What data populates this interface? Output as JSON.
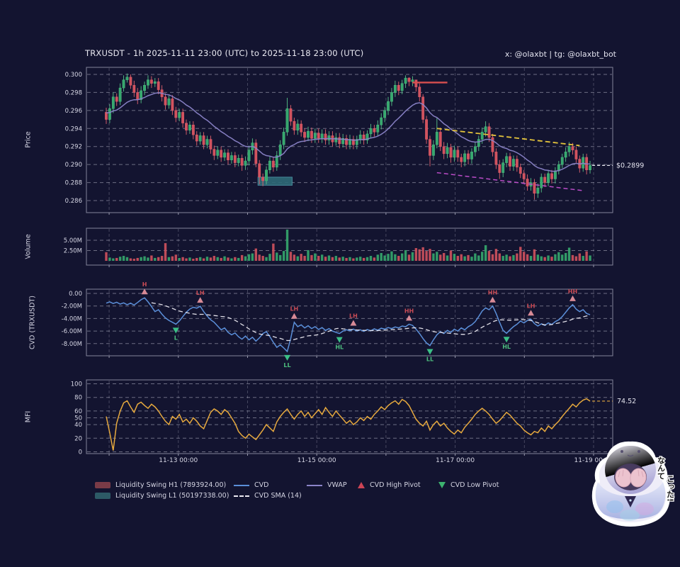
{
  "meta": {
    "title": "TRXUSDT - 1h 2025-11-11 23:00 (UTC) to 2025-11-18 23:00 (UTC)",
    "credit": "x: @olaxbt | tg: @olaxbt_bot"
  },
  "colors": {
    "bg": "#131430",
    "panel_border": "#a9a9bd",
    "grid": "#d9d9e8",
    "text": "#d6d6e4",
    "up": "#36a86e",
    "up_edge": "#55c287",
    "down": "#d2525e",
    "down_edge": "#e2626e",
    "vwap": "#8b84c9",
    "cvd": "#5b8fd9",
    "cvd_sma": "#eceaf2",
    "mfi": "#e6a93e",
    "h1_line": "#d94f4f",
    "l1_fill": "#2e6a78",
    "l1_edge": "#4a95a6",
    "upper_trend": "#e4c43c",
    "lower_trend": "#c44fd0",
    "last_price": "#e8e8f0",
    "pivot_high": "#d88a96",
    "pivot_high_text": "#c84b55",
    "pivot_low": "#3bbf86",
    "pivot_low_text": "#4cbd7e",
    "legend_h1_patch": "#7a3b47",
    "legend_l1_patch": "#2d5a66"
  },
  "panels": {
    "price": {
      "label": "Price"
    },
    "volume": {
      "label": "Volume"
    },
    "cvd": {
      "label": "CVD (TRXUSDT)"
    },
    "mfi": {
      "label": "MFI"
    }
  },
  "legend": {
    "rows": [
      {
        "items": [
          {
            "swatch": "patch",
            "color": "#7a3b47",
            "label": "Liquidity Swing H1 (7893924.00)"
          },
          {
            "swatch": "line",
            "color": "#5b8fd9",
            "label": "CVD"
          },
          {
            "swatch": "line",
            "color": "#8b84c9",
            "label": "VWAP"
          },
          {
            "swatch": "triangle-up",
            "color": "#cc4455",
            "label": "CVD High Pivot"
          },
          {
            "swatch": "triangle-down",
            "color": "#3db36f",
            "label": "CVD Low Pivot"
          }
        ]
      },
      {
        "items": [
          {
            "swatch": "patch",
            "color": "#2d5a66",
            "label": "Liquidity Swing L1 (50197338.00)"
          },
          {
            "swatch": "dashed",
            "color": "#eceaf2",
            "label": "CVD SMA (14)"
          }
        ]
      }
    ]
  },
  "mascot": {
    "line1": "なんて",
    "line2": "こった!"
  },
  "chart_data": {
    "type": "candlestick-multipanel",
    "symbol": "TRXUSDT",
    "interval": "1h",
    "range": "2025-11-11 23:00 (UTC) to 2025-11-18 23:00 (UTC)",
    "bars": 140,
    "axes": {
      "price_ticks": {
        "labels": [
          "0.300",
          "0.298",
          "0.296",
          "0.294",
          "0.292",
          "0.290",
          "0.288",
          "0.286"
        ],
        "values": [
          0.3,
          0.298,
          0.296,
          0.294,
          0.292,
          0.29,
          0.288,
          0.286
        ]
      },
      "volume_ticks": {
        "labels": [
          "5.00M",
          "2.50M"
        ],
        "values": [
          5.0,
          2.5
        ]
      },
      "cvd_ticks": {
        "labels": [
          "0.00",
          "-2.00M",
          "-4.00M",
          "-6.00M",
          "-8.00M"
        ],
        "values": [
          0,
          -2,
          -4,
          -6,
          -8
        ]
      },
      "mfi_ticks": {
        "labels": [
          "100",
          "80",
          "60",
          "50",
          "40",
          "20",
          "0"
        ],
        "values": [
          100,
          80,
          60,
          50,
          40,
          20,
          0
        ]
      },
      "x_ticks": {
        "labels": [
          "11-13 00:00",
          "11-15 00:00",
          "11-17 00:00",
          "11-19 00:00"
        ],
        "hours": [
          25,
          73,
          121,
          169
        ]
      },
      "day_hours": [
        1,
        25,
        49,
        73,
        97,
        121,
        145,
        169
      ]
    },
    "candles": {
      "first_open": 0.2958,
      "close": [
        0.295,
        0.2962,
        0.2975,
        0.297,
        0.2985,
        0.2994,
        0.2997,
        0.2988,
        0.298,
        0.2972,
        0.2982,
        0.2988,
        0.2994,
        0.299,
        0.2992,
        0.2983,
        0.2975,
        0.2966,
        0.2973,
        0.296,
        0.2952,
        0.2958,
        0.2946,
        0.2938,
        0.2944,
        0.2933,
        0.2926,
        0.2932,
        0.2922,
        0.2928,
        0.2917,
        0.291,
        0.2916,
        0.2908,
        0.2913,
        0.2905,
        0.291,
        0.2902,
        0.2907,
        0.2899,
        0.2904,
        0.2916,
        0.2924,
        0.2901,
        0.2886,
        0.2882,
        0.2894,
        0.2904,
        0.2897,
        0.291,
        0.2922,
        0.2936,
        0.2962,
        0.2948,
        0.2938,
        0.2945,
        0.2936,
        0.293,
        0.2937,
        0.2929,
        0.2935,
        0.2929,
        0.2934,
        0.2927,
        0.2932,
        0.2925,
        0.293,
        0.2923,
        0.2929,
        0.2922,
        0.2928,
        0.2922,
        0.2928,
        0.2933,
        0.2927,
        0.2934,
        0.294,
        0.2936,
        0.2944,
        0.2952,
        0.296,
        0.297,
        0.298,
        0.2988,
        0.2982,
        0.299,
        0.2996,
        0.2992,
        0.2994,
        0.2986,
        0.2975,
        0.295,
        0.2928,
        0.291,
        0.2922,
        0.2936,
        0.292,
        0.2912,
        0.2919,
        0.2908,
        0.2916,
        0.2908,
        0.2903,
        0.2912,
        0.2906,
        0.2914,
        0.292,
        0.2928,
        0.2936,
        0.2942,
        0.293,
        0.2914,
        0.29,
        0.2891,
        0.2902,
        0.2909,
        0.2898,
        0.2906,
        0.2897,
        0.289,
        0.2884,
        0.2876,
        0.288,
        0.2868,
        0.2874,
        0.2886,
        0.288,
        0.289,
        0.2884,
        0.2893,
        0.29,
        0.2908,
        0.2914,
        0.292,
        0.2916,
        0.2906,
        0.2896,
        0.2908,
        0.2894,
        0.2899
      ],
      "high": [
        0.2963,
        0.2967,
        0.298,
        0.2979,
        0.299,
        0.2999,
        0.3001,
        0.3,
        0.2993,
        0.2985,
        0.2987,
        0.2992,
        0.2999,
        0.2998,
        0.2996,
        0.2996,
        0.2988,
        0.2979,
        0.2977,
        0.2977,
        0.2964,
        0.2962,
        0.2962,
        0.295,
        0.2948,
        0.2948,
        0.2937,
        0.2936,
        0.2936,
        0.2932,
        0.2932,
        0.2921,
        0.292,
        0.292,
        0.2917,
        0.2917,
        0.2914,
        0.2914,
        0.2911,
        0.2911,
        0.2909,
        0.2921,
        0.2929,
        0.2928,
        0.2905,
        0.289,
        0.2898,
        0.2909,
        0.2908,
        0.2915,
        0.2927,
        0.2941,
        0.2974,
        0.2966,
        0.2952,
        0.295,
        0.2949,
        0.294,
        0.2942,
        0.2941,
        0.294,
        0.294,
        0.2939,
        0.2939,
        0.2937,
        0.2937,
        0.2935,
        0.2935,
        0.2934,
        0.2933,
        0.2933,
        0.2932,
        0.2932,
        0.2938,
        0.2937,
        0.2938,
        0.2945,
        0.2944,
        0.2949,
        0.2957,
        0.2964,
        0.2975,
        0.2985,
        0.2993,
        0.2992,
        0.2994,
        0.2999,
        0.2997,
        0.2998,
        0.2991,
        0.299,
        0.2978,
        0.2954,
        0.2932,
        0.2927,
        0.2952,
        0.2941,
        0.2925,
        0.2924,
        0.2923,
        0.2921,
        0.292,
        0.2912,
        0.2916,
        0.2916,
        0.2918,
        0.2925,
        0.2932,
        0.2941,
        0.2948,
        0.2946,
        0.2934,
        0.2918,
        0.2905,
        0.2906,
        0.2913,
        0.2913,
        0.291,
        0.291,
        0.2901,
        0.2894,
        0.2889,
        0.2885,
        0.2884,
        0.2879,
        0.289,
        0.289,
        0.2894,
        0.2894,
        0.2897,
        0.2904,
        0.2912,
        0.2919,
        0.2925,
        0.2924,
        0.292,
        0.291,
        0.2912,
        0.2912,
        0.2904
      ],
      "low": [
        0.2945,
        0.2946,
        0.2957,
        0.2965,
        0.2966,
        0.2981,
        0.2991,
        0.2984,
        0.2975,
        0.2967,
        0.2968,
        0.2977,
        0.2984,
        0.2985,
        0.2986,
        0.2978,
        0.297,
        0.2961,
        0.2962,
        0.2955,
        0.2947,
        0.2948,
        0.2941,
        0.2933,
        0.2934,
        0.2928,
        0.2921,
        0.2922,
        0.2917,
        0.2918,
        0.2912,
        0.2905,
        0.2906,
        0.2903,
        0.2904,
        0.29,
        0.2901,
        0.2897,
        0.2898,
        0.2893,
        0.2894,
        0.2899,
        0.2911,
        0.2897,
        0.2878,
        0.2876,
        0.2878,
        0.289,
        0.2892,
        0.2893,
        0.2905,
        0.2917,
        0.2932,
        0.2943,
        0.2933,
        0.2933,
        0.2931,
        0.2925,
        0.2926,
        0.2924,
        0.2924,
        0.2924,
        0.2924,
        0.2922,
        0.2922,
        0.292,
        0.2921,
        0.2918,
        0.2919,
        0.2917,
        0.2917,
        0.2917,
        0.2917,
        0.2923,
        0.2922,
        0.2923,
        0.2929,
        0.2931,
        0.2932,
        0.2939,
        0.2947,
        0.2955,
        0.2965,
        0.2975,
        0.2977,
        0.2978,
        0.2985,
        0.2987,
        0.2987,
        0.2981,
        0.297,
        0.2946,
        0.2923,
        0.2898,
        0.2905,
        0.2918,
        0.2915,
        0.2906,
        0.2907,
        0.2902,
        0.2903,
        0.2903,
        0.2897,
        0.2898,
        0.29,
        0.2901,
        0.2909,
        0.2915,
        0.2923,
        0.2931,
        0.2925,
        0.2909,
        0.2895,
        0.2884,
        0.2886,
        0.2897,
        0.2893,
        0.2893,
        0.2892,
        0.2885,
        0.2879,
        0.2871,
        0.2871,
        0.2861,
        0.2863,
        0.2869,
        0.2875,
        0.2876,
        0.2879,
        0.2879,
        0.2889,
        0.2896,
        0.2903,
        0.2909,
        0.2911,
        0.2902,
        0.2891,
        0.2892,
        0.2889,
        0.289
      ]
    },
    "volume_millions": [
      2.1,
      0.8,
      0.6,
      0.7,
      1.0,
      1.2,
      0.9,
      0.6,
      0.5,
      0.7,
      0.9,
      1.1,
      0.8,
      1.3,
      0.7,
      0.9,
      1.2,
      4.3,
      0.9,
      1.1,
      1.5,
      0.7,
      0.9,
      0.6,
      0.8,
      0.5,
      0.7,
      0.9,
      0.6,
      1.0,
      0.8,
      1.2,
      0.9,
      0.7,
      1.1,
      0.8,
      0.6,
      0.9,
      0.7,
      1.4,
      1.1,
      1.6,
      1.8,
      3.0,
      1.5,
      1.2,
      0.9,
      1.7,
      4.2,
      2.0,
      1.4,
      2.4,
      7.6,
      2.2,
      1.5,
      1.1,
      1.7,
      1.2,
      2.6,
      1.4,
      1.8,
      1.2,
      1.5,
      1.0,
      1.3,
      0.9,
      1.2,
      0.8,
      1.0,
      0.7,
      0.9,
      0.6,
      0.8,
      1.0,
      0.7,
      0.9,
      1.2,
      0.8,
      1.5,
      1.9,
      1.3,
      1.7,
      2.3,
      1.6,
      1.2,
      1.8,
      2.6,
      1.5,
      2.1,
      3.1,
      2.8,
      3.3,
      2.4,
      2.9,
      1.8,
      2.2,
      1.5,
      1.9,
      1.3,
      2.5,
      1.7,
      1.2,
      1.6,
      1.1,
      1.4,
      1.0,
      1.8,
      1.3,
      2.2,
      3.8,
      2.4,
      1.6,
      2.9,
      1.8,
      1.2,
      1.5,
      1.1,
      1.4,
      1.8,
      3.4,
      2.2,
      1.6,
      1.2,
      2.8,
      1.5,
      1.1,
      0.9,
      1.3,
      1.0,
      1.6,
      2.1,
      1.5,
      1.9,
      3.2,
      1.4,
      1.1,
      1.8,
      1.2,
      2.3,
      1.3
    ],
    "cvd_millions": [
      -1.55,
      -1.35,
      -1.6,
      -1.4,
      -1.7,
      -1.5,
      -1.8,
      -1.55,
      -1.85,
      -1.45,
      -1.0,
      -0.7,
      -1.35,
      -2.1,
      -2.9,
      -2.6,
      -3.3,
      -3.9,
      -4.3,
      -4.6,
      -4.9,
      -4.4,
      -3.7,
      -3.0,
      -2.5,
      -2.2,
      -2.35,
      -2.05,
      -2.9,
      -3.6,
      -4.2,
      -4.6,
      -5.2,
      -5.8,
      -5.5,
      -6.2,
      -6.6,
      -6.3,
      -6.9,
      -7.3,
      -6.8,
      -7.4,
      -7.0,
      -7.6,
      -7.1,
      -6.4,
      -6.1,
      -6.9,
      -7.8,
      -8.6,
      -8.2,
      -8.7,
      -9.25,
      -7.2,
      -4.6,
      -5.3,
      -5.0,
      -5.5,
      -5.15,
      -5.6,
      -5.3,
      -5.75,
      -5.45,
      -5.9,
      -5.6,
      -6.0,
      -6.2,
      -6.4,
      -6.0,
      -5.8,
      -5.95,
      -5.7,
      -6.0,
      -5.8,
      -6.05,
      -5.75,
      -5.95,
      -5.65,
      -5.85,
      -5.55,
      -5.7,
      -5.45,
      -5.6,
      -5.35,
      -5.5,
      -5.2,
      -5.3,
      -4.9,
      -5.1,
      -5.7,
      -6.4,
      -7.2,
      -7.9,
      -8.3,
      -7.4,
      -6.6,
      -6.1,
      -6.4,
      -5.9,
      -6.2,
      -5.7,
      -6.0,
      -5.5,
      -5.8,
      -5.3,
      -5.0,
      -4.5,
      -3.7,
      -2.8,
      -2.3,
      -2.6,
      -2.0,
      -3.2,
      -4.6,
      -5.9,
      -6.35,
      -5.8,
      -5.3,
      -4.9,
      -4.4,
      -4.7,
      -4.3,
      -4.1,
      -4.8,
      -5.2,
      -4.85,
      -5.1,
      -4.7,
      -4.95,
      -4.5,
      -4.2,
      -3.7,
      -3.0,
      -2.3,
      -1.8,
      -2.5,
      -2.9,
      -2.6,
      -3.2,
      -3.4
    ],
    "cvd_sma_period": 14,
    "mfi": [
      52,
      28,
      2,
      42,
      60,
      72,
      75,
      66,
      58,
      70,
      73,
      68,
      64,
      70,
      66,
      60,
      52,
      45,
      40,
      52,
      48,
      55,
      44,
      48,
      42,
      50,
      45,
      38,
      34,
      46,
      58,
      63,
      60,
      55,
      62,
      58,
      50,
      42,
      30,
      24,
      20,
      26,
      22,
      18,
      25,
      32,
      40,
      35,
      30,
      44,
      52,
      58,
      63,
      55,
      48,
      55,
      60,
      52,
      58,
      50,
      56,
      62,
      55,
      65,
      58,
      52,
      60,
      54,
      48,
      42,
      46,
      40,
      44,
      50,
      46,
      52,
      48,
      55,
      60,
      66,
      62,
      68,
      72,
      75,
      70,
      77,
      74,
      68,
      58,
      48,
      42,
      38,
      45,
      32,
      40,
      45,
      38,
      42,
      35,
      30,
      26,
      32,
      28,
      36,
      42,
      48,
      55,
      60,
      64,
      60,
      55,
      48,
      42,
      46,
      52,
      58,
      54,
      48,
      42,
      38,
      32,
      28,
      25,
      30,
      28,
      35,
      30,
      38,
      34,
      40,
      45,
      52,
      58,
      64,
      70,
      66,
      72,
      76,
      78,
      74.52
    ],
    "cvd_pivots": [
      {
        "bar": 11,
        "label": "H",
        "kind": "high"
      },
      {
        "bar": 20,
        "label": "L",
        "kind": "low"
      },
      {
        "bar": 27,
        "label": "LH",
        "kind": "high"
      },
      {
        "bar": 52,
        "label": "LL",
        "kind": "low"
      },
      {
        "bar": 54,
        "label": "LH",
        "kind": "high"
      },
      {
        "bar": 67,
        "label": "HL",
        "kind": "low"
      },
      {
        "bar": 71,
        "label": "LH",
        "kind": "high"
      },
      {
        "bar": 87,
        "label": "HH",
        "kind": "high"
      },
      {
        "bar": 93,
        "label": "LL",
        "kind": "low"
      },
      {
        "bar": 111,
        "label": "HH",
        "kind": "high"
      },
      {
        "bar": 115,
        "label": "HL",
        "kind": "low"
      },
      {
        "bar": 122,
        "label": "LH",
        "kind": "high"
      },
      {
        "bar": 134,
        "label": "HH",
        "kind": "high"
      }
    ],
    "overlays": {
      "liquidity_swing_h1": {
        "price": 0.2991,
        "from_bar": 88,
        "to_bar": 98,
        "value": "7893924.00"
      },
      "liquidity_swing_l1": {
        "top": 0.2886,
        "bottom": 0.2877,
        "from_bar": 44,
        "to_bar": 53,
        "value": "50197338.00"
      },
      "upper_trendline": {
        "from_bar": 95,
        "from_price": 0.294,
        "to_bar": 136,
        "to_price": 0.2921
      },
      "lower_trendline": {
        "from_bar": 95,
        "from_price": 0.2891,
        "to_bar": 137,
        "to_price": 0.2871
      },
      "last_price": 0.2899,
      "last_price_label": "$0.2899",
      "mfi_level": 74.52,
      "mfi_level_label": "74.52"
    }
  }
}
